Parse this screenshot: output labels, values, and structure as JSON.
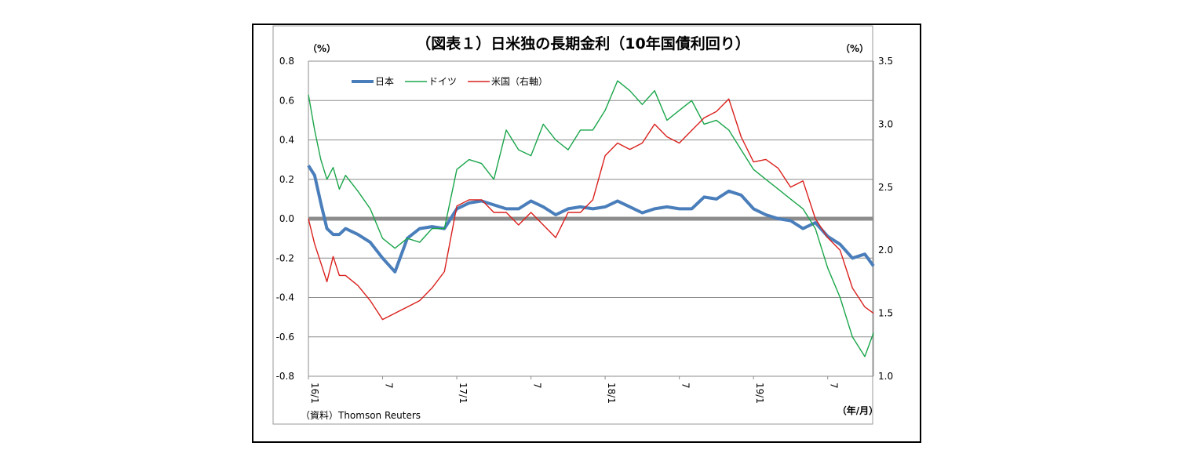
{
  "chart_data": {
    "type": "line",
    "title": "（図表１）日米独の長期金利（10年国債利回り）",
    "left_unit": "（%）",
    "right_unit": "（%）",
    "x_unit": "（年/月）",
    "source": "（資料）Thomson Reuters",
    "x_tick_labels": [
      "16/1",
      "7",
      "17/1",
      "7",
      "18/1",
      "7",
      "19/1",
      "7"
    ],
    "x_ticks": [
      0,
      6,
      12,
      18,
      24,
      30,
      36,
      42
    ],
    "x_range": [
      0,
      45.7
    ],
    "y_left": {
      "range": [
        -0.8,
        0.8
      ],
      "ticks": [
        "-0.8",
        "-0.6",
        "-0.4",
        "-0.2",
        "0.0",
        "0.2",
        "0.4",
        "0.6",
        "0.8"
      ]
    },
    "y_right": {
      "range": [
        1.0,
        3.5
      ],
      "ticks": [
        "1.0",
        "1.5",
        "2.0",
        "2.5",
        "3.0",
        "3.5"
      ]
    },
    "zero_line": 0.0,
    "grid": "horizontal",
    "legend_position": "top-left",
    "series": [
      {
        "name": "日本",
        "axis": "left",
        "color": "#4a7ebb",
        "x": [
          0,
          0.5,
          1,
          1.5,
          2,
          2.5,
          3,
          4,
          5,
          6,
          7,
          8,
          9,
          10,
          11,
          12,
          13,
          14,
          15,
          16,
          17,
          18,
          19,
          20,
          21,
          22,
          23,
          24,
          25,
          26,
          27,
          28,
          29,
          30,
          31,
          32,
          33,
          34,
          35,
          36,
          37,
          38,
          39,
          40,
          41,
          42,
          43,
          44,
          45,
          45.7
        ],
        "values": [
          0.27,
          0.22,
          0.08,
          -0.05,
          -0.08,
          -0.08,
          -0.05,
          -0.08,
          -0.12,
          -0.2,
          -0.27,
          -0.1,
          -0.05,
          -0.04,
          -0.05,
          0.05,
          0.08,
          0.09,
          0.07,
          0.05,
          0.05,
          0.09,
          0.06,
          0.02,
          0.05,
          0.06,
          0.05,
          0.06,
          0.09,
          0.06,
          0.03,
          0.05,
          0.06,
          0.05,
          0.05,
          0.11,
          0.1,
          0.14,
          0.12,
          0.05,
          0.02,
          0.0,
          -0.01,
          -0.05,
          -0.02,
          -0.09,
          -0.13,
          -0.2,
          -0.18,
          -0.24
        ]
      },
      {
        "name": "ドイツ",
        "axis": "left",
        "color": "#1aa54a",
        "x": [
          0,
          0.5,
          1,
          1.5,
          2,
          2.5,
          3,
          4,
          5,
          6,
          7,
          8,
          9,
          10,
          11,
          12,
          13,
          14,
          15,
          16,
          17,
          18,
          19,
          20,
          21,
          22,
          23,
          24,
          25,
          26,
          27,
          28,
          29,
          30,
          31,
          32,
          33,
          34,
          35,
          36,
          37,
          38,
          39,
          40,
          41,
          42,
          43,
          44,
          45,
          45.7
        ],
        "values": [
          0.63,
          0.45,
          0.3,
          0.2,
          0.26,
          0.15,
          0.22,
          0.14,
          0.05,
          -0.1,
          -0.15,
          -0.1,
          -0.12,
          -0.05,
          -0.05,
          0.25,
          0.3,
          0.28,
          0.2,
          0.45,
          0.35,
          0.32,
          0.48,
          0.4,
          0.35,
          0.45,
          0.45,
          0.55,
          0.7,
          0.65,
          0.58,
          0.65,
          0.5,
          0.55,
          0.6,
          0.48,
          0.5,
          0.45,
          0.35,
          0.25,
          0.2,
          0.15,
          0.1,
          0.05,
          -0.05,
          -0.25,
          -0.4,
          -0.6,
          -0.7,
          -0.58
        ]
      },
      {
        "name": "米国（右軸）",
        "axis": "right",
        "color": "#d9201c",
        "x": [
          0,
          0.5,
          1,
          1.5,
          2,
          2.5,
          3,
          4,
          5,
          6,
          7,
          8,
          9,
          10,
          11,
          12,
          13,
          14,
          15,
          16,
          17,
          18,
          19,
          20,
          21,
          22,
          23,
          24,
          25,
          26,
          27,
          28,
          29,
          30,
          31,
          32,
          33,
          34,
          35,
          36,
          37,
          38,
          39,
          40,
          41,
          42,
          43,
          44,
          45,
          45.7
        ],
        "values": [
          2.25,
          2.05,
          1.9,
          1.75,
          1.95,
          1.8,
          1.8,
          1.72,
          1.6,
          1.45,
          1.5,
          1.55,
          1.6,
          1.7,
          1.83,
          2.35,
          2.4,
          2.4,
          2.3,
          2.3,
          2.2,
          2.3,
          2.2,
          2.1,
          2.3,
          2.3,
          2.4,
          2.75,
          2.85,
          2.8,
          2.85,
          3.0,
          2.9,
          2.85,
          2.95,
          3.05,
          3.1,
          3.2,
          2.9,
          2.7,
          2.72,
          2.65,
          2.5,
          2.55,
          2.25,
          2.1,
          2.0,
          1.7,
          1.55,
          1.5
        ]
      }
    ]
  }
}
